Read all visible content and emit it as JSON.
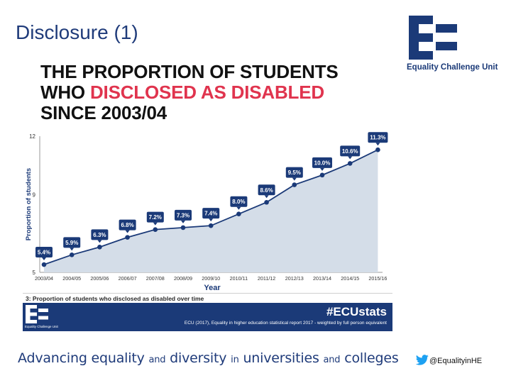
{
  "slide": {
    "title": "Disclosure (1)"
  },
  "logo": {
    "text": "Equality Challenge Unit"
  },
  "infographic": {
    "headline_line1": "THE PROPORTION OF STUDENTS",
    "headline_line2_part1": "WHO ",
    "headline_line2_highlight": "DISCLOSED AS DISABLED",
    "headline_line3": "SINCE 2003/04",
    "caption": "3: Proportion of students who disclosed as disabled over time",
    "footer_logo_text": "Equality Challenge Unit",
    "hashtag": "#ECUstats",
    "source": "ECU (2017), Equality in higher education statistical report 2017 - weighted by full person equivalent"
  },
  "chart_data": {
    "type": "area",
    "xlabel": "Year",
    "ylabel": "Proportion of students",
    "ylim": [
      5,
      12
    ],
    "yticks": [
      5,
      9,
      12
    ],
    "categories": [
      "2003/04",
      "2004/05",
      "2005/06",
      "2006/07",
      "2007/08",
      "2008/09",
      "2009/10",
      "2010/11",
      "2011/12",
      "2012/13",
      "2013/14",
      "2014/15",
      "2015/16"
    ],
    "values": [
      5.4,
      5.9,
      6.3,
      6.8,
      7.2,
      7.3,
      7.4,
      8.0,
      8.6,
      9.5,
      10.0,
      10.6,
      11.3
    ],
    "data_labels": [
      "5.4%",
      "5.9%",
      "6.3%",
      "6.8%",
      "7.2%",
      "7.3%",
      "7.4%",
      "8.0%",
      "8.6%",
      "9.5%",
      "10.0%",
      "10.6%",
      "11.3%"
    ],
    "colors": {
      "line": "#1b3a78",
      "fill": "#d4dde8",
      "label_bg": "#1b3a78"
    }
  },
  "footer": {
    "tagline_1": "Advancing equality ",
    "tagline_and1": "and",
    "tagline_2": " diversity ",
    "tagline_in": "in",
    "tagline_3": " universities ",
    "tagline_and2": "and",
    "tagline_4": " colleges",
    "twitter_handle": "@EqualityinHE",
    "twitter_icon": "twitter-bird-icon"
  }
}
